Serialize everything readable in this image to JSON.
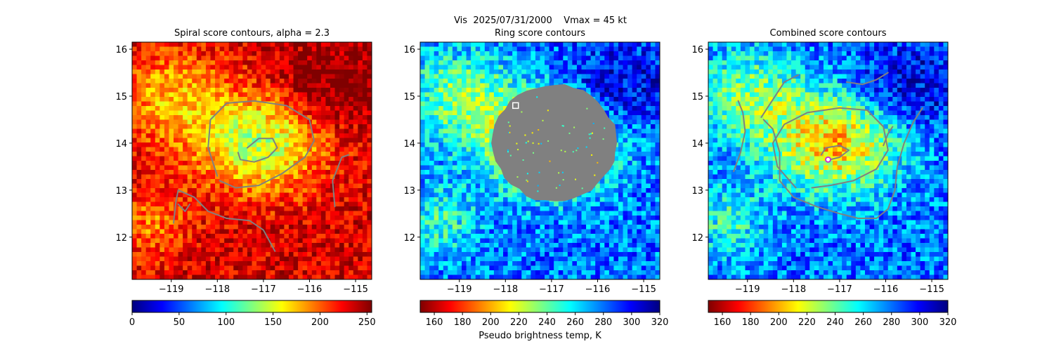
{
  "suptitle": "Vis  2025/07/31/2000    Vmax = 45 kt",
  "colors": {
    "contour": "#808080",
    "mask": "#808080",
    "marker_square": "#ffffff",
    "marker_circle": "#cc33cc"
  },
  "chart_data": [
    {
      "type": "heatmap",
      "title": "Spiral score contours, alpha =  2.3",
      "colormap": "jet",
      "xlim": [
        -119.85,
        -114.65
      ],
      "ylim": [
        11.1,
        16.15
      ],
      "xticks": [
        "−119",
        "−118",
        "−117",
        "−116",
        "−115"
      ],
      "xtick_values": [
        -119,
        -118,
        -117,
        -116,
        -115
      ],
      "yticks": [
        "12",
        "13",
        "14",
        "15",
        "16"
      ],
      "ytick_values": [
        12,
        13,
        14,
        15,
        16
      ],
      "colorbar": {
        "min": 0,
        "max": 255,
        "reversed": true,
        "ticks": [
          "0",
          "50",
          "100",
          "150",
          "200",
          "250"
        ],
        "tick_values": [
          0,
          50,
          100,
          150,
          200,
          250
        ],
        "label": ""
      },
      "contours": [
        [
          [
            -118.0,
            13.3
          ],
          [
            -118.2,
            13.9
          ],
          [
            -118.15,
            14.5
          ],
          [
            -117.8,
            14.85
          ],
          [
            -117.2,
            14.9
          ],
          [
            -116.5,
            14.8
          ],
          [
            -116.0,
            14.5
          ],
          [
            -115.9,
            14.05
          ],
          [
            -116.1,
            13.7
          ],
          [
            -116.6,
            13.35
          ],
          [
            -117.1,
            13.1
          ],
          [
            -117.6,
            13.05
          ],
          [
            -117.95,
            13.2
          ]
        ],
        [
          [
            -117.35,
            13.9
          ],
          [
            -117.1,
            14.1
          ],
          [
            -116.8,
            14.1
          ],
          [
            -116.7,
            13.9
          ],
          [
            -116.9,
            13.7
          ],
          [
            -117.2,
            13.6
          ],
          [
            -117.5,
            13.65
          ],
          [
            -117.55,
            13.8
          ]
        ],
        [
          [
            -118.95,
            12.3
          ],
          [
            -118.9,
            12.75
          ],
          [
            -118.85,
            13.0
          ],
          [
            -118.5,
            12.85
          ],
          [
            -118.2,
            12.55
          ],
          [
            -117.8,
            12.4
          ],
          [
            -117.3,
            12.35
          ],
          [
            -117.0,
            12.15
          ],
          [
            -116.75,
            11.7
          ]
        ],
        [
          [
            -118.85,
            12.7
          ],
          [
            -118.7,
            12.55
          ],
          [
            -118.6,
            12.7
          ]
        ],
        [
          [
            -115.45,
            12.65
          ],
          [
            -115.5,
            13.2
          ],
          [
            -115.3,
            13.7
          ],
          [
            -115.15,
            13.75
          ]
        ]
      ],
      "marker": null,
      "mask": false
    },
    {
      "type": "heatmap",
      "title": "Ring score contours",
      "colormap": "jet",
      "xlim": [
        -119.85,
        -114.65
      ],
      "ylim": [
        11.1,
        16.15
      ],
      "xticks": [
        "−119",
        "−118",
        "−117",
        "−116",
        "−115"
      ],
      "xtick_values": [
        -119,
        -118,
        -117,
        -116,
        -115
      ],
      "yticks": [
        "12",
        "13",
        "14",
        "15",
        "16"
      ],
      "ytick_values": [
        12,
        13,
        14,
        15,
        16
      ],
      "colorbar": {
        "min": 150,
        "max": 320,
        "reversed": false,
        "ticks": [
          "160",
          "180",
          "200",
          "220",
          "240",
          "260",
          "280",
          "300",
          "320"
        ],
        "tick_values": [
          160,
          180,
          200,
          220,
          240,
          260,
          280,
          300,
          320
        ],
        "label": "Pseudo brightness temp, K"
      },
      "contours": [],
      "marker": {
        "shape": "square",
        "lon": -117.78,
        "lat": 14.8
      },
      "mask": true
    },
    {
      "type": "heatmap",
      "title": "Combined score contours",
      "colormap": "jet",
      "xlim": [
        -119.85,
        -114.65
      ],
      "ylim": [
        11.1,
        16.15
      ],
      "xticks": [
        "−119",
        "−118",
        "−117",
        "−116",
        "−115"
      ],
      "xtick_values": [
        -119,
        -118,
        -117,
        -116,
        -115
      ],
      "yticks": [
        "12",
        "13",
        "14",
        "15",
        "16"
      ],
      "ytick_values": [
        12,
        13,
        14,
        15,
        16
      ],
      "colorbar": {
        "min": 150,
        "max": 320,
        "reversed": false,
        "ticks": [
          "160",
          "180",
          "200",
          "220",
          "240",
          "260",
          "280",
          "300",
          "320"
        ],
        "tick_values": [
          160,
          180,
          200,
          220,
          240,
          260,
          280,
          300,
          320
        ],
        "label": ""
      },
      "contours": [
        [
          [
            -117.95,
            13.05
          ],
          [
            -118.35,
            13.5
          ],
          [
            -118.45,
            14.0
          ],
          [
            -118.2,
            14.4
          ],
          [
            -117.7,
            14.65
          ],
          [
            -117.0,
            14.75
          ],
          [
            -116.4,
            14.7
          ],
          [
            -116.05,
            14.35
          ],
          [
            -115.95,
            13.85
          ],
          [
            -116.2,
            13.45
          ],
          [
            -116.7,
            13.2
          ],
          [
            -117.2,
            13.1
          ],
          [
            -117.6,
            13.05
          ]
        ],
        [
          [
            -117.4,
            13.75
          ],
          [
            -117.3,
            13.9
          ],
          [
            -117.0,
            13.95
          ],
          [
            -116.8,
            13.85
          ],
          [
            -117.0,
            13.7
          ],
          [
            -117.2,
            13.65
          ]
        ],
        [
          [
            -118.65,
            14.5
          ],
          [
            -118.45,
            14.3
          ],
          [
            -118.3,
            13.8
          ],
          [
            -118.3,
            13.2
          ],
          [
            -118.0,
            12.85
          ],
          [
            -117.5,
            12.65
          ],
          [
            -117.0,
            12.5
          ],
          [
            -116.6,
            12.4
          ],
          [
            -116.2,
            12.4
          ],
          [
            -115.95,
            12.6
          ],
          [
            -115.8,
            13.0
          ],
          [
            -115.75,
            13.5
          ],
          [
            -115.6,
            14.0
          ],
          [
            -115.4,
            14.45
          ],
          [
            -115.2,
            14.75
          ]
        ],
        [
          [
            -118.7,
            14.55
          ],
          [
            -118.4,
            15.0
          ],
          [
            -118.2,
            15.3
          ],
          [
            -117.9,
            15.45
          ]
        ],
        [
          [
            -116.85,
            15.3
          ],
          [
            -116.5,
            15.25
          ],
          [
            -116.2,
            15.35
          ],
          [
            -115.95,
            15.5
          ]
        ],
        [
          [
            -119.3,
            13.4
          ],
          [
            -119.15,
            13.8
          ],
          [
            -119.05,
            14.25
          ],
          [
            -119.1,
            14.65
          ],
          [
            -119.2,
            14.9
          ]
        ],
        [
          [
            -116.05,
            13.95
          ],
          [
            -115.95,
            14.2
          ],
          [
            -115.85,
            14.35
          ]
        ]
      ],
      "marker": {
        "shape": "circle",
        "lon": -117.25,
        "lat": 13.65
      },
      "mask": false
    }
  ]
}
